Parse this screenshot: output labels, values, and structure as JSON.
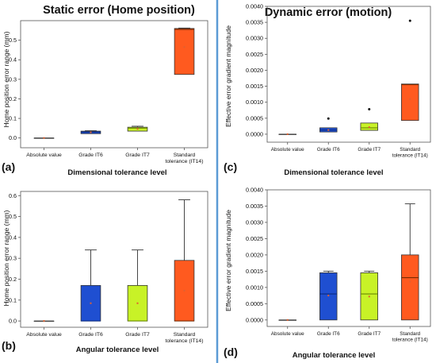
{
  "divider_color": "#5b9bd5",
  "colors": {
    "absolute": "#7f7f7f",
    "it6": "#1f4fd1",
    "it7": "#c8f227",
    "it14": "#ff5a1f",
    "edge": "#333333",
    "median_it14": "#7a2a00",
    "mean_point": "#e06030"
  },
  "chart_data": [
    {
      "panel_label": "(a)",
      "type": "box",
      "title": "Static error (Home position)",
      "xlabel": "Dimensional tolerance level",
      "ylabel": "Home position error range (mm)",
      "categories": [
        "Absolute value",
        "Grade IT6",
        "Grade IT7",
        "Standard tolerance (IT14)"
      ],
      "ylim": [
        -0.05,
        0.6
      ],
      "yticks": [
        "0.0",
        "0.1",
        "0.2",
        "0.3",
        "0.4",
        "0.5"
      ],
      "ytick_values": [
        0.0,
        0.1,
        0.2,
        0.3,
        0.4,
        0.5
      ],
      "boxes": [
        {
          "q1": 0.0,
          "median": 0.0,
          "q3": 0.0,
          "whisker_low": 0.0,
          "whisker_high": 0.0,
          "mean": 0.0
        },
        {
          "q1": 0.022,
          "median": 0.03,
          "q3": 0.035,
          "whisker_low": 0.022,
          "whisker_high": 0.037,
          "mean": 0.029
        },
        {
          "q1": 0.035,
          "median": 0.05,
          "q3": 0.055,
          "whisker_low": 0.035,
          "whisker_high": 0.06,
          "mean": 0.047
        },
        {
          "q1": 0.325,
          "median": 0.555,
          "q3": 0.56,
          "whisker_low": 0.325,
          "whisker_high": 0.562,
          "mean": 0.465
        }
      ],
      "outliers": []
    },
    {
      "panel_label": "(c)",
      "type": "box",
      "title": "Dynamic error (motion)",
      "xlabel": "Dimensional tolerance level",
      "ylabel": "Effective error gradient magnitude",
      "categories": [
        "Absolute value",
        "Grade IT6",
        "Grade IT7",
        "Standard tolerance (IT14)"
      ],
      "ylim": [
        -0.00025,
        0.004
      ],
      "yticks": [
        "0.0000",
        "0.0005",
        "0.0010",
        "0.0015",
        "0.0020",
        "0.0025",
        "0.0030",
        "0.0035",
        "0.0040"
      ],
      "ytick_values": [
        0.0,
        0.0005,
        0.001,
        0.0015,
        0.002,
        0.0025,
        0.003,
        0.0035,
        0.004
      ],
      "boxes": [
        {
          "q1": 0.0,
          "median": 0.0,
          "q3": 0.0,
          "whisker_low": 0.0,
          "whisker_high": 0.0,
          "mean": 0.0
        },
        {
          "q1": 7e-05,
          "median": 0.00013,
          "q3": 0.0002,
          "whisker_low": 7e-05,
          "whisker_high": 0.0002,
          "mean": 0.00013
        },
        {
          "q1": 0.00012,
          "median": 0.0002,
          "q3": 0.00035,
          "whisker_low": 0.00012,
          "whisker_high": 0.00035,
          "mean": 0.00022
        },
        {
          "q1": 0.00043,
          "median": 0.00155,
          "q3": 0.00157,
          "whisker_low": 0.00043,
          "whisker_high": 0.00157,
          "mean": 0.0011
        }
      ],
      "outliers": [
        {
          "category": 1,
          "value": 0.00049
        },
        {
          "category": 2,
          "value": 0.00078
        },
        {
          "category": 3,
          "value": 0.00355
        }
      ]
    },
    {
      "panel_label": "(b)",
      "type": "box",
      "title": "",
      "xlabel": "Angular tolerance level",
      "ylabel": "Home position error range (mm)",
      "categories": [
        "Absolute value",
        "Grade IT6",
        "Grade IT7",
        "Standard tolerance (IT14)"
      ],
      "ylim": [
        -0.03,
        0.62
      ],
      "yticks": [
        "0.0",
        "0.1",
        "0.2",
        "0.3",
        "0.4",
        "0.5",
        "0.6"
      ],
      "ytick_values": [
        0.0,
        0.1,
        0.2,
        0.3,
        0.4,
        0.5,
        0.6
      ],
      "boxes": [
        {
          "q1": 0.0,
          "median": 0.0,
          "q3": 0.0,
          "whisker_low": 0.0,
          "whisker_high": 0.0,
          "mean": 0.0
        },
        {
          "q1": 0.0,
          "median": 0.0,
          "q3": 0.17,
          "whisker_low": 0.0,
          "whisker_high": 0.34,
          "mean": 0.085
        },
        {
          "q1": 0.0,
          "median": 0.0,
          "q3": 0.17,
          "whisker_low": 0.0,
          "whisker_high": 0.34,
          "mean": 0.085
        },
        {
          "q1": 0.0,
          "median": 0.0,
          "q3": 0.29,
          "whisker_low": 0.0,
          "whisker_high": 0.58,
          "mean": 0.145
        }
      ],
      "outliers": []
    },
    {
      "panel_label": "(d)",
      "type": "box",
      "title": "",
      "xlabel": "Angular tolerance level",
      "ylabel": "Effective error gradient magnitude",
      "categories": [
        "Absolute value",
        "Grade IT6",
        "Grade IT7",
        "Standard tolerance (IT14)"
      ],
      "ylim": [
        -0.0002,
        0.004
      ],
      "yticks": [
        "0.0000",
        "0.0005",
        "0.0010",
        "0.0015",
        "0.0020",
        "0.0025",
        "0.0030",
        "0.0035",
        "0.0040"
      ],
      "ytick_values": [
        0.0,
        0.0005,
        0.001,
        0.0015,
        0.002,
        0.0025,
        0.003,
        0.0035,
        0.004
      ],
      "boxes": [
        {
          "q1": 0.0,
          "median": 0.0,
          "q3": 0.0,
          "whisker_low": 0.0,
          "whisker_high": 0.0,
          "mean": 0.0
        },
        {
          "q1": 0.0,
          "median": 0.0008,
          "q3": 0.00145,
          "whisker_low": 0.0,
          "whisker_high": 0.0015,
          "mean": 0.00075
        },
        {
          "q1": 0.0,
          "median": 0.0008,
          "q3": 0.00145,
          "whisker_low": 0.0,
          "whisker_high": 0.0015,
          "mean": 0.00072
        },
        {
          "q1": 0.0,
          "median": 0.0013,
          "q3": 0.002,
          "whisker_low": 0.0,
          "whisker_high": 0.00357,
          "mean": 0.00118
        }
      ],
      "outliers": []
    }
  ]
}
